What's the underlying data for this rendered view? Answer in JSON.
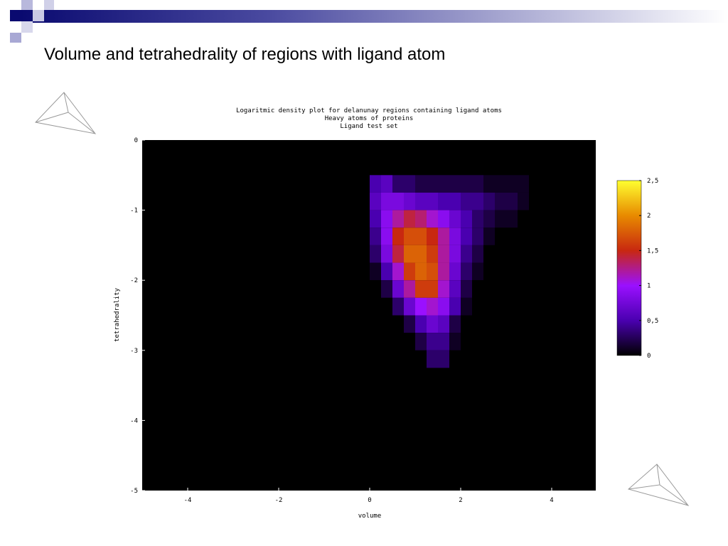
{
  "slide": {
    "title": "Volume and tetrahedrality of regions with ligand atom"
  },
  "chart_data": {
    "type": "heatmap",
    "title": [
      "Logaritmic density plot for delanunay regions containing ligand atoms",
      "Heavy atoms of proteins",
      "Ligand test set"
    ],
    "x_label": "volume",
    "y_label": "tetrahedrality",
    "xlim": [
      -5,
      5
    ],
    "ylim": [
      -5,
      0
    ],
    "xticks": [
      -4,
      -2,
      0,
      2,
      4
    ],
    "yticks": [
      0,
      -1,
      -2,
      -3,
      -4,
      -5
    ],
    "x_edges": [
      0,
      0.25,
      0.5,
      0.75,
      1,
      1.25,
      1.5,
      1.75,
      2,
      2.25,
      2.5,
      2.75,
      3,
      3.25,
      3.5
    ],
    "y_edges": [
      -0.5,
      -0.75,
      -1,
      -1.25,
      -1.5,
      -1.75,
      -2,
      -2.25,
      -2.5,
      -2.75,
      -3,
      -3.25
    ],
    "z": [
      [
        0.5,
        0.6,
        0.3,
        0.3,
        0.2,
        0.2,
        0.2,
        0.2,
        0.2,
        0.2,
        0.1,
        0.1,
        0.1,
        0.1
      ],
      [
        0.6,
        0.8,
        0.8,
        0.7,
        0.6,
        0.6,
        0.5,
        0.5,
        0.4,
        0.4,
        0.3,
        0.2,
        0.2,
        0.1
      ],
      [
        0.5,
        0.9,
        1.2,
        1.4,
        1.3,
        1.1,
        0.9,
        0.7,
        0.5,
        0.3,
        0.2,
        0.1,
        0.1,
        0
      ],
      [
        0.4,
        0.9,
        1.5,
        1.7,
        1.7,
        1.5,
        1.2,
        0.8,
        0.5,
        0.3,
        0.1,
        0,
        0,
        0
      ],
      [
        0.3,
        0.8,
        1.4,
        1.8,
        1.8,
        1.6,
        1.2,
        0.8,
        0.4,
        0.2,
        0,
        0,
        0,
        0
      ],
      [
        0.1,
        0.5,
        1.1,
        1.6,
        1.8,
        1.7,
        1.2,
        0.7,
        0.3,
        0.1,
        0,
        0,
        0,
        0
      ],
      [
        0,
        0.2,
        0.7,
        1.2,
        1.6,
        1.6,
        1.1,
        0.6,
        0.2,
        0,
        0,
        0,
        0,
        0
      ],
      [
        0,
        0,
        0.3,
        0.7,
        1.0,
        1.1,
        0.9,
        0.5,
        0.1,
        0,
        0,
        0,
        0,
        0
      ],
      [
        0,
        0,
        0,
        0.2,
        0.5,
        0.7,
        0.6,
        0.2,
        0,
        0,
        0,
        0,
        0,
        0
      ],
      [
        0,
        0,
        0,
        0,
        0.2,
        0.4,
        0.4,
        0.1,
        0,
        0,
        0,
        0,
        0,
        0
      ],
      [
        0,
        0,
        0,
        0,
        0,
        0.3,
        0.3,
        0,
        0,
        0,
        0,
        0,
        0,
        0
      ]
    ],
    "clim": [
      0,
      2.5
    ],
    "cticks": [
      0,
      {
        "value": 0.5,
        "label": "0,5"
      },
      1,
      {
        "value": 1.5,
        "label": "1,5"
      },
      2,
      {
        "value": 2.5,
        "label": "2,5"
      }
    ],
    "colormap": [
      "#000000",
      "#4a00b0",
      "#9a10ff",
      "#c82810",
      "#e88a00",
      "#ffff30"
    ],
    "background": "#000000"
  }
}
